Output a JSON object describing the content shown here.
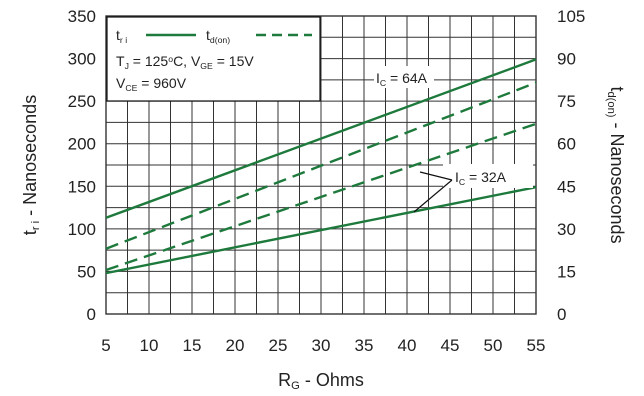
{
  "chart_data": {
    "type": "line",
    "x_ticks": [
      5,
      10,
      15,
      20,
      25,
      30,
      35,
      40,
      45,
      50,
      55
    ],
    "xlim": [
      5,
      55
    ],
    "y_left_ticks": [
      0,
      50,
      100,
      150,
      200,
      250,
      300,
      350
    ],
    "ylim_left": [
      0,
      350
    ],
    "y_right_ticks": [
      0,
      15,
      30,
      45,
      60,
      75,
      90,
      105
    ],
    "ylim_right": [
      0,
      105
    ],
    "grid": true,
    "legend_position": "top-left",
    "colors": {
      "series": "#1e7a3c",
      "grid": "#333333",
      "text": "#222222"
    },
    "xlabel": {
      "main": "R",
      "sub": "G",
      "rest": " - Ohms"
    },
    "ylabel_left": {
      "main": "t",
      "sub": "r i",
      "rest": " - Nanoseconds"
    },
    "ylabel_right": {
      "main": "t",
      "sub": "d(on)",
      "rest": " - Nanoseconds"
    },
    "legend": {
      "entries": [
        {
          "main": "t",
          "sub": "r i",
          "style": "solid"
        },
        {
          "main": "t",
          "sub": "d(on)",
          "style": "dashed"
        }
      ],
      "conditions": [
        {
          "parts": [
            {
              "t": "T"
            },
            {
              "t": "J",
              "s": "sub"
            },
            {
              "t": " = 125"
            },
            {
              "t": "o",
              "s": "sup"
            },
            {
              "t": "C,  V"
            },
            {
              "t": "GE",
              "s": "sub"
            },
            {
              "t": " = 15V"
            }
          ]
        },
        {
          "parts": [
            {
              "t": "V"
            },
            {
              "t": "CE",
              "s": "sub"
            },
            {
              "t": " = 960V"
            }
          ]
        }
      ]
    },
    "annotations": [
      {
        "main": "I",
        "sub": "C",
        "rest": " = 64A"
      },
      {
        "main": "I",
        "sub": "C",
        "rest": " = 32A"
      }
    ],
    "series": [
      {
        "label": "t r i, I C = 64A",
        "axis": "left",
        "style": "solid",
        "x": [
          5,
          55
        ],
        "y": [
          113,
          299
        ]
      },
      {
        "label": "t r i, I C = 32A",
        "axis": "left",
        "style": "solid",
        "x": [
          5,
          55
        ],
        "y": [
          48,
          149
        ]
      },
      {
        "label": "t d(on), I C = 64A",
        "axis": "right",
        "style": "dashed",
        "x": [
          5,
          55
        ],
        "y": [
          23,
          81.5
        ]
      },
      {
        "label": "t d(on), I C = 32A",
        "axis": "right",
        "style": "dashed",
        "x": [
          5,
          55
        ],
        "y": [
          15.5,
          67
        ]
      }
    ]
  }
}
